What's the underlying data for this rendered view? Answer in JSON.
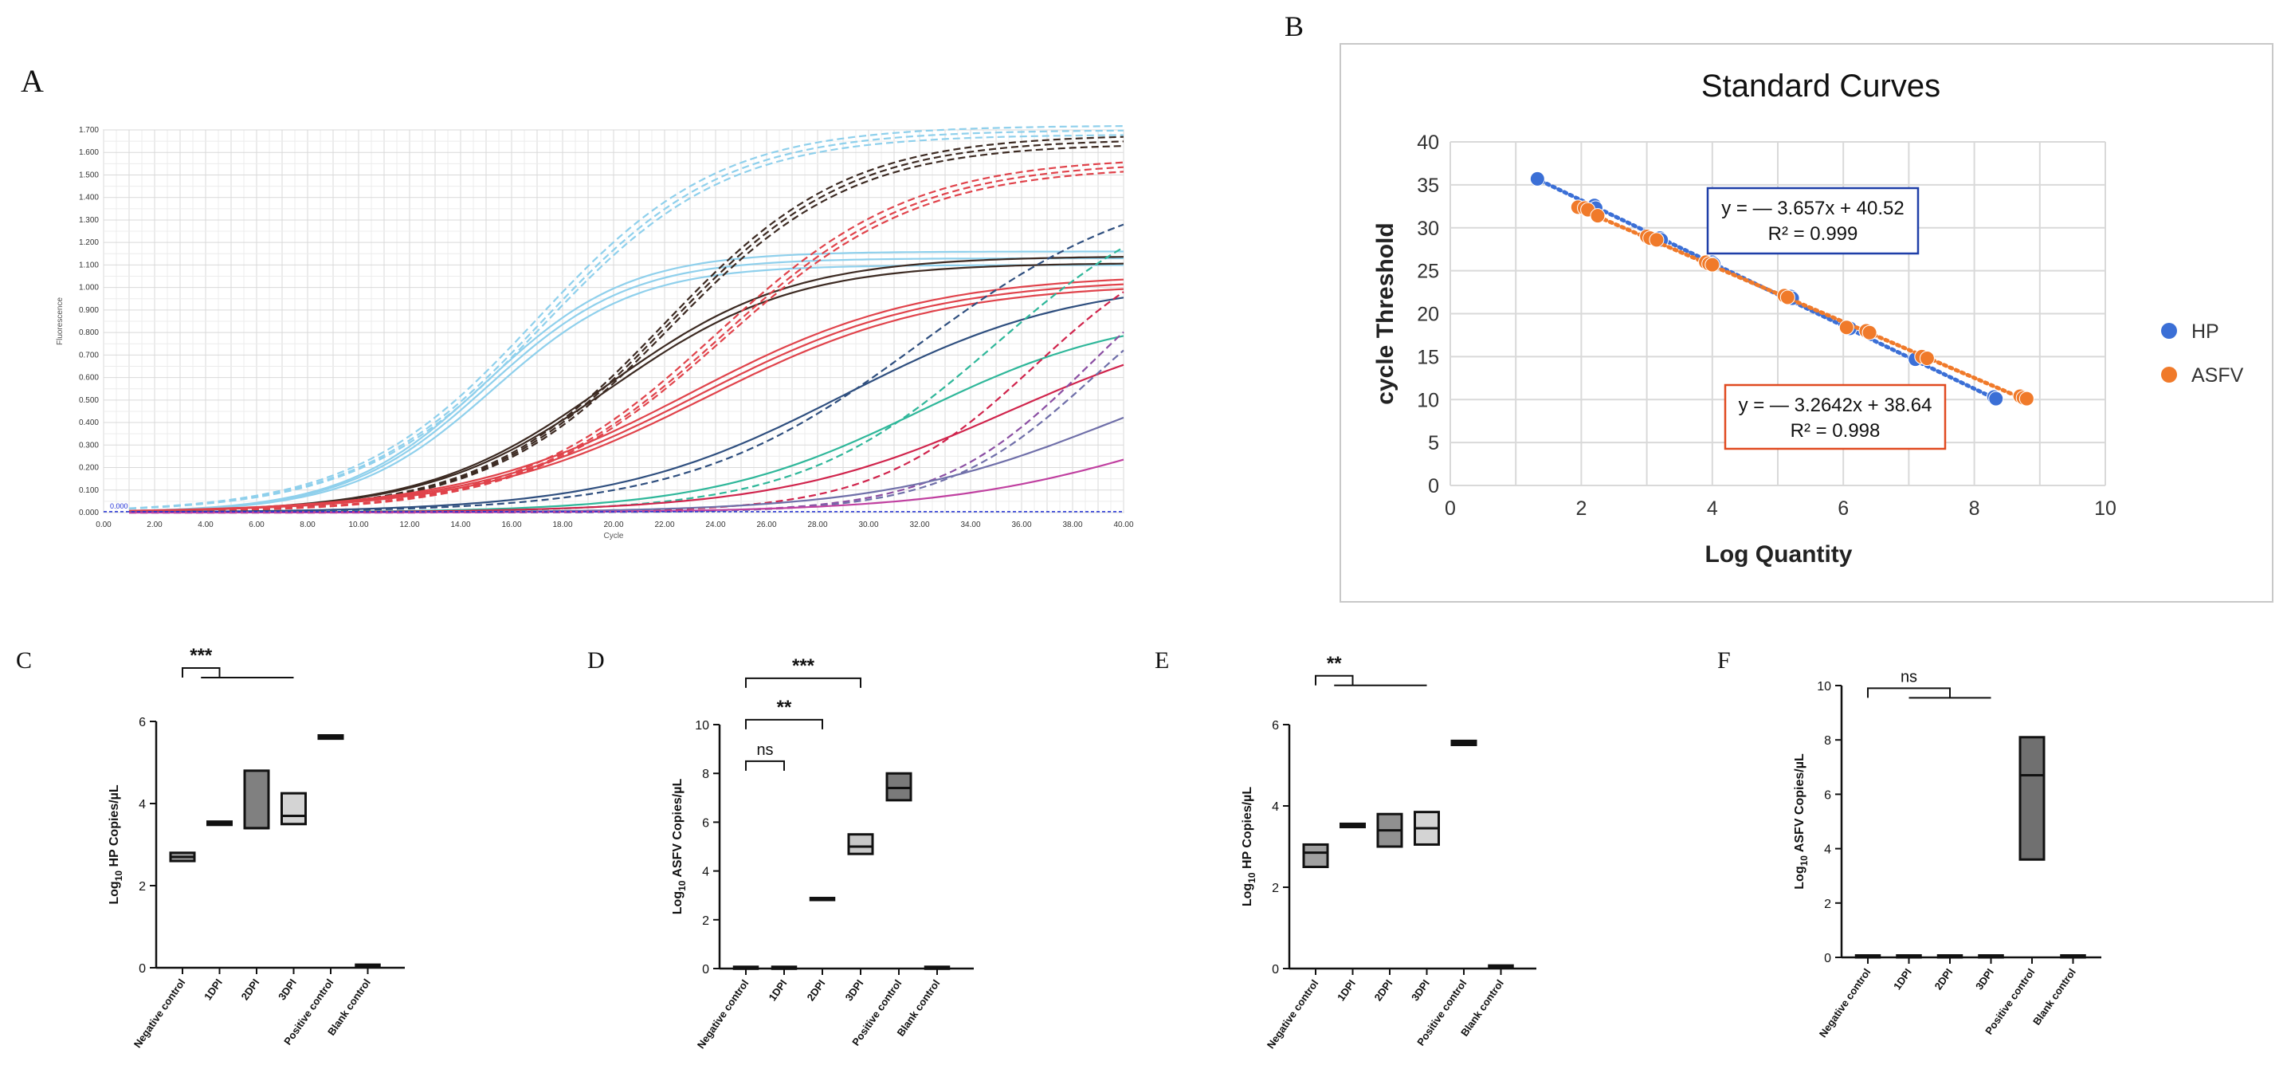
{
  "panels": {
    "a": {
      "letter": "A"
    },
    "b": {
      "letter": "B"
    },
    "c": {
      "letter": "C"
    },
    "d": {
      "letter": "D"
    },
    "e": {
      "letter": "E"
    },
    "f": {
      "letter": "F"
    }
  },
  "colors": {
    "light_blue": "#8fd0ec",
    "dark_brown": "#3c2a22",
    "red": "#e0434b",
    "navy": "#2f4f7f",
    "teal": "#2fb79a",
    "crimson": "#d0244c",
    "purple": "#8b4fa3",
    "slate": "#6f6fa9",
    "magenta": "#c040a0",
    "hp_blue": "#3b6fd6",
    "asfv_orange": "#f07a2a",
    "box_blue": "#1f3fa8",
    "box_red": "#e04a20"
  },
  "chart_data": [
    {
      "id": "A",
      "type": "line",
      "title": "",
      "xlabel": "Cycle",
      "ylabel": "Fluorescence",
      "xlim": [
        0,
        40
      ],
      "ylim": [
        0,
        1.7
      ],
      "xticks": [
        "0.00",
        "2.00",
        "4.00",
        "6.00",
        "8.00",
        "10.00",
        "12.00",
        "14.00",
        "16.00",
        "18.00",
        "20.00",
        "22.00",
        "24.00",
        "26.00",
        "28.00",
        "30.00",
        "32.00",
        "34.00",
        "36.00",
        "38.00",
        "40.00"
      ],
      "yticks": [
        "0.000",
        "0.100",
        "0.200",
        "0.300",
        "0.400",
        "0.500",
        "0.600",
        "0.700",
        "0.800",
        "0.900",
        "1.000",
        "1.100",
        "1.200",
        "1.300",
        "1.400",
        "1.500",
        "1.600",
        "1.700"
      ],
      "threshold_label": "0.000",
      "grid": true,
      "series": [
        {
          "name": "light-blue-dashed-1",
          "color": "light_blue",
          "dashed": true,
          "plateau": 1.72,
          "midpoint": 17.0,
          "slope": 0.28
        },
        {
          "name": "light-blue-dashed-2",
          "color": "light_blue",
          "dashed": true,
          "plateau": 1.7,
          "midpoint": 17.2,
          "slope": 0.28
        },
        {
          "name": "light-blue-dashed-3",
          "color": "light_blue",
          "dashed": true,
          "plateau": 1.68,
          "midpoint": 17.3,
          "slope": 0.28
        },
        {
          "name": "light-blue-solid-1",
          "color": "light_blue",
          "dashed": false,
          "plateau": 1.16,
          "midpoint": 15.0,
          "slope": 0.36
        },
        {
          "name": "light-blue-solid-2",
          "color": "light_blue",
          "dashed": false,
          "plateau": 1.13,
          "midpoint": 15.1,
          "slope": 0.36
        },
        {
          "name": "light-blue-solid-3",
          "color": "light_blue",
          "dashed": false,
          "plateau": 1.1,
          "midpoint": 15.3,
          "slope": 0.36
        },
        {
          "name": "brown-dashed-1",
          "color": "dark_brown",
          "dashed": true,
          "plateau": 1.68,
          "midpoint": 22.0,
          "slope": 0.28
        },
        {
          "name": "brown-dashed-2",
          "color": "dark_brown",
          "dashed": true,
          "plateau": 1.66,
          "midpoint": 22.1,
          "slope": 0.28
        },
        {
          "name": "brown-dashed-3",
          "color": "dark_brown",
          "dashed": true,
          "plateau": 1.64,
          "midpoint": 22.2,
          "slope": 0.28
        },
        {
          "name": "brown-solid-1",
          "color": "dark_brown",
          "dashed": false,
          "plateau": 1.14,
          "midpoint": 19.8,
          "slope": 0.28
        },
        {
          "name": "brown-solid-2",
          "color": "dark_brown",
          "dashed": false,
          "plateau": 1.11,
          "midpoint": 19.9,
          "slope": 0.28
        },
        {
          "name": "red-dashed-1",
          "color": "red",
          "dashed": true,
          "plateau": 1.58,
          "midpoint": 24.0,
          "slope": 0.26
        },
        {
          "name": "red-dashed-2",
          "color": "red",
          "dashed": true,
          "plateau": 1.56,
          "midpoint": 24.2,
          "slope": 0.26
        },
        {
          "name": "red-dashed-3",
          "color": "red",
          "dashed": true,
          "plateau": 1.54,
          "midpoint": 24.3,
          "slope": 0.26
        },
        {
          "name": "red-solid-1",
          "color": "red",
          "dashed": false,
          "plateau": 1.06,
          "midpoint": 23.0,
          "slope": 0.22
        },
        {
          "name": "red-solid-2",
          "color": "red",
          "dashed": false,
          "plateau": 1.04,
          "midpoint": 23.3,
          "slope": 0.22
        },
        {
          "name": "red-solid-3",
          "color": "red",
          "dashed": false,
          "plateau": 1.02,
          "midpoint": 23.6,
          "slope": 0.22
        },
        {
          "name": "navy-dashed",
          "color": "navy",
          "dashed": true,
          "plateau": 1.5,
          "midpoint": 32.0,
          "slope": 0.22
        },
        {
          "name": "navy-solid",
          "color": "navy",
          "dashed": false,
          "plateau": 1.04,
          "midpoint": 29.0,
          "slope": 0.22
        },
        {
          "name": "teal-dashed",
          "color": "teal",
          "dashed": true,
          "plateau": 1.5,
          "midpoint": 35.0,
          "slope": 0.26
        },
        {
          "name": "teal-solid",
          "color": "teal",
          "dashed": false,
          "plateau": 0.9,
          "midpoint": 32.0,
          "slope": 0.24
        },
        {
          "name": "crimson-dashed",
          "color": "crimson",
          "dashed": true,
          "plateau": 1.3,
          "midpoint": 36.5,
          "slope": 0.32
        },
        {
          "name": "crimson-solid",
          "color": "crimson",
          "dashed": false,
          "plateau": 0.9,
          "midpoint": 35.5,
          "slope": 0.22
        },
        {
          "name": "purple-dashed-1",
          "color": "purple",
          "dashed": true,
          "plateau": 1.3,
          "midpoint": 38.6,
          "slope": 0.34
        },
        {
          "name": "purple-dashed-2",
          "color": "slate",
          "dashed": true,
          "plateau": 1.2,
          "midpoint": 38.8,
          "slope": 0.34
        },
        {
          "name": "slate-solid",
          "color": "slate",
          "dashed": false,
          "plateau": 0.8,
          "midpoint": 39.5,
          "slope": 0.22
        },
        {
          "name": "magenta-solid",
          "color": "magenta",
          "dashed": false,
          "plateau": 0.6,
          "midpoint": 42.0,
          "slope": 0.22
        }
      ]
    },
    {
      "id": "B",
      "type": "scatter",
      "title": "Standard Curves",
      "xlabel": "Log Quantity",
      "ylabel": "cycle Threshold",
      "xlim": [
        0,
        10
      ],
      "ylim": [
        0,
        40
      ],
      "xticks": [
        "0",
        "2",
        "4",
        "6",
        "8",
        "10"
      ],
      "yticks": [
        "0",
        "5",
        "10",
        "15",
        "20",
        "25",
        "30",
        "35",
        "40"
      ],
      "grid": true,
      "legend_position": "right",
      "series": [
        {
          "name": "HP",
          "color": "hp_blue",
          "x": [
            1.33,
            2.2,
            2.22,
            3.2,
            3.22,
            4.0,
            4.02,
            5.2,
            5.22,
            6.1,
            7.1,
            8.3,
            8.33
          ],
          "y": [
            35.7,
            32.6,
            32.3,
            28.8,
            28.6,
            26.0,
            25.8,
            22.0,
            21.8,
            18.3,
            14.7,
            10.3,
            10.1
          ],
          "fit": {
            "slope": -3.657,
            "intercept": 40.52,
            "x_range": [
              1.3,
              8.4
            ]
          },
          "equation": "y = — 3.657x + 40.52",
          "r2": "R² = 0.999"
        },
        {
          "name": "ASFV",
          "color": "asfv_orange",
          "x": [
            1.95,
            2.05,
            2.1,
            2.25,
            3.0,
            3.05,
            3.15,
            3.9,
            3.95,
            4.0,
            5.1,
            5.15,
            6.05,
            6.35,
            6.4,
            7.2,
            7.28,
            8.7,
            8.75,
            8.8
          ],
          "y": [
            32.4,
            32.3,
            32.1,
            31.4,
            29.0,
            28.8,
            28.6,
            26.0,
            25.8,
            25.7,
            22.1,
            21.9,
            18.4,
            18.0,
            17.8,
            15.0,
            14.8,
            10.4,
            10.2,
            10.1
          ],
          "fit": {
            "slope": -3.2642,
            "intercept": 38.64,
            "x_range": [
              1.9,
              8.85
            ]
          },
          "equation": "y = — 3.2642x + 38.64",
          "r2": "R² = 0.998"
        }
      ]
    },
    {
      "id": "C",
      "type": "bar",
      "ylabel_prefix": "Log",
      "ylabel_sub": "10",
      "ylabel_rest": " HP Copies/µL",
      "ylim": [
        0,
        6
      ],
      "yticks": [
        "0",
        "2",
        "4",
        "6"
      ],
      "categories": [
        "Negative control",
        "1DPI",
        "2DPI",
        "3DPI",
        "Positive control",
        "Blank control"
      ],
      "boxes": [
        {
          "min": 2.6,
          "median": 2.7,
          "max": 2.8,
          "fill": "#a0a0a0"
        },
        {
          "min": 3.48,
          "median": 3.52,
          "max": 3.56,
          "fill": "#a0a0a0"
        },
        {
          "min": 3.4,
          "median": 3.4,
          "max": 4.8,
          "fill": "#808080"
        },
        {
          "min": 3.5,
          "median": 3.7,
          "max": 4.25,
          "fill": "#d4d4d4"
        },
        {
          "min": 5.58,
          "median": 5.62,
          "max": 5.66,
          "fill": "#808080"
        },
        {
          "min": 0.02,
          "median": 0.05,
          "max": 0.08,
          "fill": "#808080"
        }
      ],
      "brackets": [
        {
          "label": "***",
          "from": 0,
          "to": 1,
          "to_span_end": 3,
          "level": 7.3
        }
      ]
    },
    {
      "id": "D",
      "type": "bar",
      "ylabel_prefix": "Log",
      "ylabel_sub": "10",
      "ylabel_rest": " ASFV Copies/µL",
      "ylim": [
        0,
        10
      ],
      "yticks": [
        "0",
        "2",
        "4",
        "6",
        "8",
        "10"
      ],
      "categories": [
        "Negative control",
        "1DPI",
        "2DPI",
        "3DPI",
        "Positive control",
        "Blank control"
      ],
      "boxes": [
        {
          "min": 0.02,
          "median": 0.05,
          "max": 0.08,
          "fill": "#808080"
        },
        {
          "min": 0.02,
          "median": 0.05,
          "max": 0.08,
          "fill": "#808080"
        },
        {
          "min": 2.82,
          "median": 2.86,
          "max": 2.9,
          "fill": "#808080"
        },
        {
          "min": 4.7,
          "median": 5.0,
          "max": 5.5,
          "fill": "#c8c8c8"
        },
        {
          "min": 6.9,
          "median": 7.4,
          "max": 8.0,
          "fill": "#7a7a7a"
        },
        {
          "min": 0.02,
          "median": 0.05,
          "max": 0.08,
          "fill": "#808080"
        }
      ],
      "brackets": [
        {
          "label": "ns",
          "from": 0,
          "to": 1,
          "level": 8.5
        },
        {
          "label": "**",
          "from": 0,
          "to": 2,
          "level": 10.2
        },
        {
          "label": "***",
          "from": 0,
          "to": 3,
          "level": 11.9
        }
      ]
    },
    {
      "id": "E",
      "type": "bar",
      "ylabel_prefix": "Log",
      "ylabel_sub": "10",
      "ylabel_rest": " HP Copies/µL",
      "ylim": [
        0,
        6
      ],
      "yticks": [
        "0",
        "2",
        "4",
        "6"
      ],
      "categories": [
        "Negative control",
        "1DPI",
        "2DPI",
        "3DPI",
        "Positive control",
        "Blank control"
      ],
      "boxes": [
        {
          "min": 2.5,
          "median": 2.85,
          "max": 3.05,
          "fill": "#a0a0a0"
        },
        {
          "min": 3.48,
          "median": 3.52,
          "max": 3.56,
          "fill": "#a0a0a0"
        },
        {
          "min": 3.0,
          "median": 3.4,
          "max": 3.8,
          "fill": "#909090"
        },
        {
          "min": 3.05,
          "median": 3.45,
          "max": 3.85,
          "fill": "#d4d4d4"
        },
        {
          "min": 5.5,
          "median": 5.55,
          "max": 5.6,
          "fill": "#808080"
        },
        {
          "min": 0.02,
          "median": 0.05,
          "max": 0.08,
          "fill": "#808080"
        }
      ],
      "brackets": [
        {
          "label": "**",
          "from": 0,
          "to": 1,
          "to_span_end": 3,
          "level": 7.2
        }
      ]
    },
    {
      "id": "F",
      "type": "bar",
      "ylabel_prefix": "Log",
      "ylabel_sub": "10",
      "ylabel_rest": " ASFV Copies/µL",
      "ylim": [
        0,
        10
      ],
      "yticks": [
        "0",
        "2",
        "4",
        "6",
        "8",
        "10"
      ],
      "categories": [
        "Negative control",
        "1DPI",
        "2DPI",
        "3DPI",
        "Positive control",
        "Blank control"
      ],
      "boxes": [
        {
          "min": 0.02,
          "median": 0.05,
          "max": 0.08,
          "fill": "#808080"
        },
        {
          "min": 0.02,
          "median": 0.05,
          "max": 0.08,
          "fill": "#808080"
        },
        {
          "min": 0.02,
          "median": 0.05,
          "max": 0.08,
          "fill": "#808080"
        },
        {
          "min": 0.02,
          "median": 0.05,
          "max": 0.08,
          "fill": "#808080"
        },
        {
          "min": 3.6,
          "median": 6.7,
          "max": 8.1,
          "fill": "#707070"
        },
        {
          "min": 0.02,
          "median": 0.05,
          "max": 0.08,
          "fill": "#808080"
        }
      ],
      "brackets": [
        {
          "label": "ns",
          "from": 0,
          "to": 2,
          "to_span_end": 3,
          "level": 9.9
        }
      ]
    }
  ]
}
